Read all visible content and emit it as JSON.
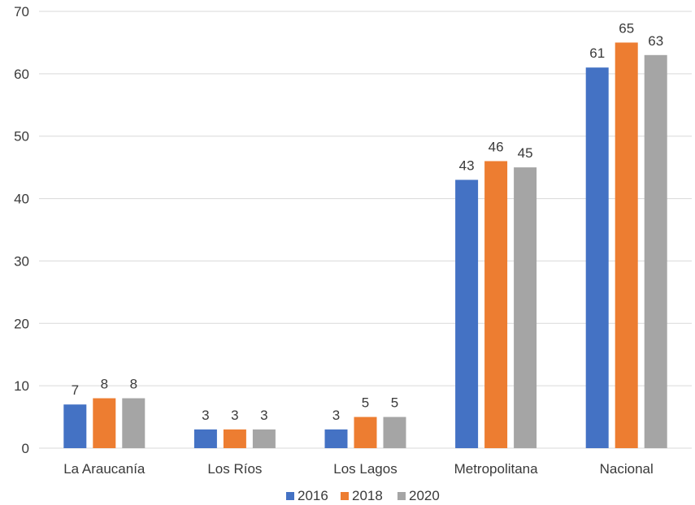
{
  "chart_data": {
    "type": "bar",
    "categories": [
      "La Araucanía",
      "Los Ríos",
      "Los Lagos",
      "Metropolitana",
      "Nacional"
    ],
    "series": [
      {
        "name": "2016",
        "color": "#4472c4",
        "values": [
          7,
          3,
          3,
          43,
          61
        ]
      },
      {
        "name": "2018",
        "color": "#ed7d31",
        "values": [
          8,
          3,
          5,
          46,
          65
        ]
      },
      {
        "name": "2020",
        "color": "#a5a5a5",
        "values": [
          8,
          3,
          5,
          45,
          63
        ]
      }
    ],
    "yticks": [
      0,
      10,
      20,
      30,
      40,
      50,
      60,
      70
    ],
    "ylim": [
      0,
      70
    ],
    "grid": true,
    "legend_position": "bottom",
    "data_labels": true
  }
}
